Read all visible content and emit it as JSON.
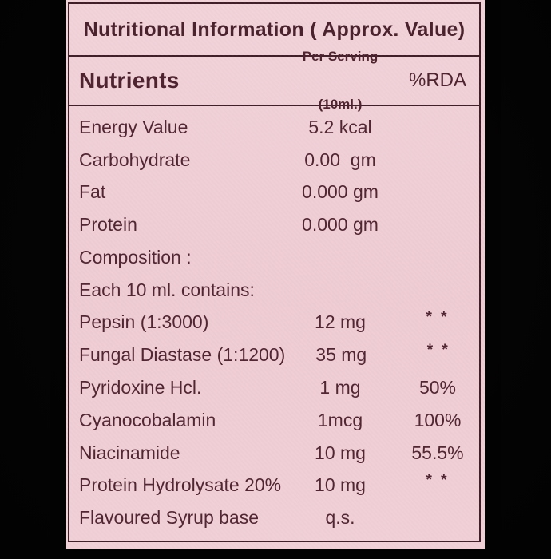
{
  "label": {
    "title": "Nutritional Information ( Approx. Value)",
    "columns": {
      "nutrients": "Nutrients",
      "per_serving_line1": "Per Serving",
      "per_serving_line2": "(10ml.)",
      "rda": "%RDA"
    },
    "rows": [
      {
        "name": "Energy Value",
        "value": "5.2 kcal",
        "rda": ""
      },
      {
        "name": "Carbohydrate",
        "value": "0.00  gm",
        "rda": ""
      },
      {
        "name": "Fat",
        "value": "0.000 gm",
        "rda": ""
      },
      {
        "name": "Protein",
        "value": "0.000 gm",
        "rda": ""
      },
      {
        "name": "Composition :",
        "value": "",
        "rda": ""
      },
      {
        "name": "Each 10 ml. contains:",
        "value": "",
        "rda": ""
      },
      {
        "name": "Pepsin (1:3000)",
        "value": "12 mg",
        "rda": "* *",
        "rda_style": "asterisk"
      },
      {
        "name": "Fungal Diastase (1:1200)",
        "value": "35 mg",
        "rda": "* *",
        "rda_style": "asterisk"
      },
      {
        "name": "Pyridoxine Hcl.",
        "value": "1 mg",
        "rda": "50%"
      },
      {
        "name": "Cyanocobalamin",
        "value": "1mcg",
        "rda": "100%"
      },
      {
        "name": "Niacinamide",
        "value": "10 mg",
        "rda": "55.5%"
      },
      {
        "name": "Protein Hydrolysate 20%",
        "value": "10 mg",
        "rda": "* *",
        "rda_style": "asterisk"
      },
      {
        "name": "Flavoured Syrup base",
        "value": "q.s.",
        "rda": ""
      }
    ],
    "colors": {
      "background_black": "#040404",
      "label_pink": "#f0ced5",
      "text_maroon": "#4b202c",
      "border_maroon": "#3e1c26"
    }
  }
}
